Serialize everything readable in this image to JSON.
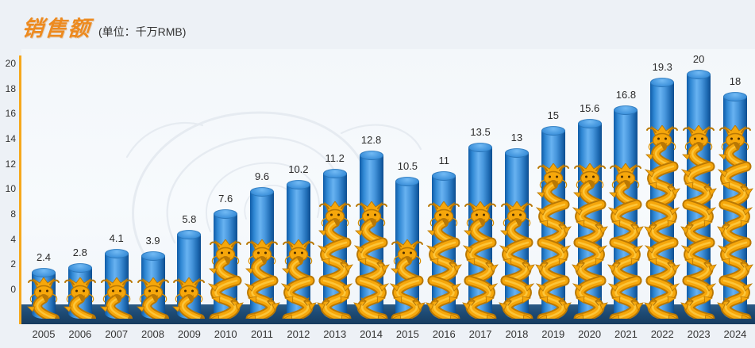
{
  "header": {
    "title": "销售额",
    "unit_label": "(单位：千万RMB)"
  },
  "chart_data": {
    "type": "bar",
    "title": "销售额",
    "subtitle": "(单位：千万RMB)",
    "categories": [
      "2005",
      "2006",
      "2007",
      "2008",
      "2009",
      "2010",
      "2011",
      "2012",
      "2013",
      "2014",
      "2015",
      "2016",
      "2017",
      "2018",
      "2019",
      "2020",
      "2021",
      "2022",
      "2023",
      "2024"
    ],
    "values": [
      2.4,
      2.8,
      4.1,
      3.9,
      5.8,
      7.6,
      9.6,
      10.2,
      11.2,
      12.8,
      10.5,
      11,
      13.5,
      13,
      15,
      15.6,
      16.8,
      19.3,
      20,
      18
    ],
    "value_labels": [
      "2.4",
      "2.8",
      "4.1",
      "3.9",
      "5.8",
      "7.6",
      "9.6",
      "10.2",
      "11.2",
      "12.8",
      "10.5",
      "11",
      "13.5",
      "13",
      "15",
      "15.6",
      "16.8",
      "19.3",
      "20",
      "18"
    ],
    "xlabel": "",
    "ylabel": "",
    "ylim": [
      0,
      20
    ],
    "y_axis_tick_labels": [
      "20",
      "18",
      "16",
      "14",
      "12",
      "10",
      "8",
      "4",
      "2",
      "0"
    ],
    "grid": false,
    "legend": "none",
    "bar_style": "3d-cylinder with golden dragon ornament",
    "colors": {
      "title_accent": "#ed8a1f",
      "axis_line": "#f6a81c",
      "bar_blue": "#3286d0",
      "bar_blue_light": "#68b2f1",
      "dragon_gold": "#f6a70b",
      "dragon_gold_dark": "#b97804",
      "platform_navy": "#1d4a74",
      "background": "#edf1f6",
      "label_text": "#333333"
    }
  }
}
